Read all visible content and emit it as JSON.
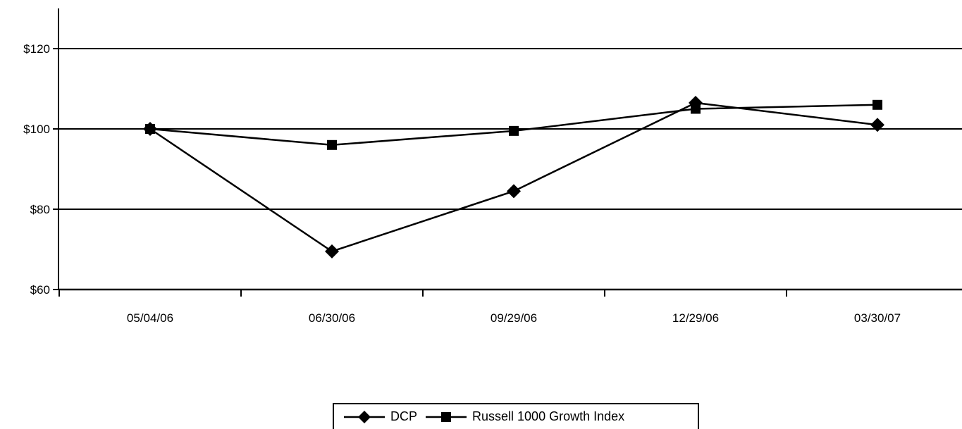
{
  "chart_data": {
    "type": "line",
    "title": "",
    "xlabel": "",
    "ylabel": "",
    "categories": [
      "05/04/06",
      "06/30/06",
      "09/29/06",
      "12/29/06",
      "03/30/07"
    ],
    "y_ticks": [
      "$60",
      "$80",
      "$100",
      "$120"
    ],
    "y_tick_values": [
      60,
      80,
      100,
      120
    ],
    "ylim": [
      60,
      130
    ],
    "grid": "horizontal",
    "legend_position": "bottom-center",
    "series": [
      {
        "name": "DCP",
        "marker": "diamond",
        "color": "#000000",
        "values": [
          100,
          69.5,
          84.5,
          106.5,
          101
        ]
      },
      {
        "name": "Russell 1000 Growth Index",
        "marker": "square",
        "color": "#000000",
        "values": [
          100,
          96,
          99.5,
          105,
          106
        ]
      }
    ]
  }
}
